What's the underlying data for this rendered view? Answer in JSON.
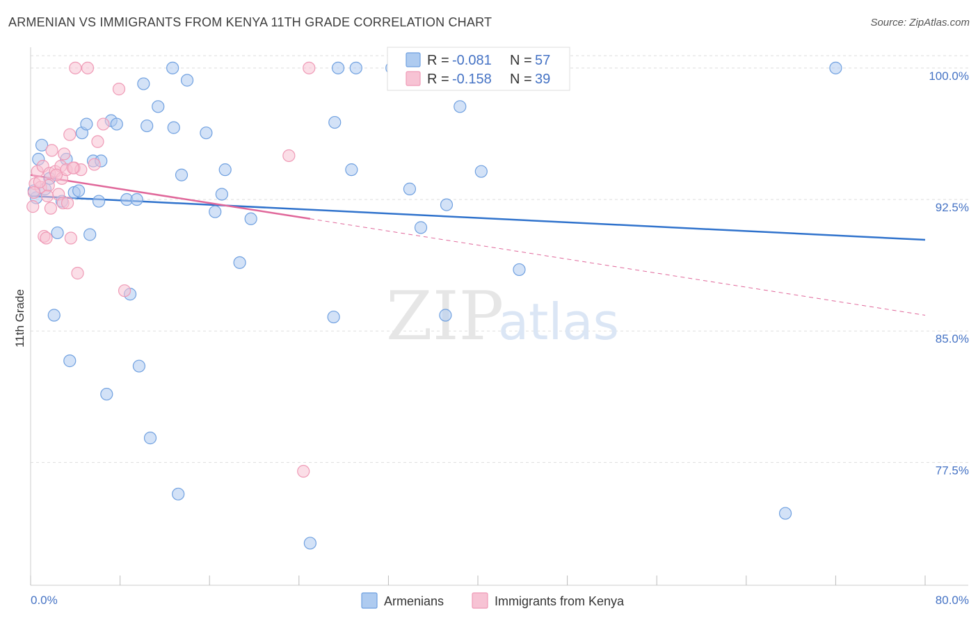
{
  "title": "ARMENIAN VS IMMIGRANTS FROM KENYA 11TH GRADE CORRELATION CHART",
  "source": "Source: ZipAtlas.com",
  "watermark": {
    "zip": "ZIP",
    "atlas": "atlas"
  },
  "colors": {
    "armenians": "#6fa0e0",
    "armenians_fill": "#aecbf0",
    "armenians_line": "#2f72cc",
    "kenya": "#ef9ab6",
    "kenya_fill": "#f7c3d4",
    "kenya_line": "#e0679a",
    "tick": "#4472c4",
    "grid": "#dddddd"
  },
  "stats_legend": [
    {
      "series": "armenians",
      "r_label": "R =",
      "r_value": "-0.081",
      "n_label": "N =",
      "n_value": "57"
    },
    {
      "series": "kenya",
      "r_label": "R =",
      "r_value": "-0.158",
      "n_label": "N =",
      "n_value": "39"
    }
  ],
  "chart_data": {
    "type": "scatter",
    "title": "ARMENIAN VS IMMIGRANTS FROM KENYA 11TH GRADE CORRELATION CHART",
    "xlabel": "",
    "ylabel": "11th Grade",
    "xlim": [
      0,
      80
    ],
    "ylim": [
      70.5,
      101.5
    ],
    "x_tick_labels": [
      "0.0%",
      "80.0%"
    ],
    "y_ticks": [
      77.5,
      85.0,
      92.5,
      100.0
    ],
    "y_tick_labels": [
      "77.5%",
      "85.0%",
      "92.5%",
      "100.0%"
    ],
    "grid": true,
    "legend_position": "bottom-center",
    "series": [
      {
        "name": "Armenians",
        "key": "armenians",
        "trend": {
          "x": [
            0,
            80
          ],
          "y": [
            92.7,
            90.2
          ],
          "dashed_from": null
        },
        "points": [
          [
            0.5,
            92.6
          ],
          [
            0.7,
            94.8
          ],
          [
            1.0,
            95.6
          ],
          [
            1.3,
            93.1
          ],
          [
            1.7,
            93.7
          ],
          [
            2.1,
            85.9
          ],
          [
            2.4,
            90.6
          ],
          [
            2.8,
            92.4
          ],
          [
            3.2,
            94.8
          ],
          [
            3.5,
            83.3
          ],
          [
            3.9,
            92.9
          ],
          [
            4.3,
            93.0
          ],
          [
            4.6,
            96.3
          ],
          [
            5.0,
            96.8
          ],
          [
            5.3,
            90.5
          ],
          [
            5.6,
            94.7
          ],
          [
            6.1,
            92.4
          ],
          [
            6.3,
            94.7
          ],
          [
            6.8,
            81.4
          ],
          [
            7.2,
            97.0
          ],
          [
            7.7,
            96.8
          ],
          [
            8.6,
            92.5
          ],
          [
            8.9,
            87.1
          ],
          [
            9.5,
            92.5
          ],
          [
            9.7,
            83.0
          ],
          [
            10.1,
            99.1
          ],
          [
            10.4,
            96.7
          ],
          [
            10.7,
            78.9
          ],
          [
            11.4,
            97.8
          ],
          [
            12.7,
            100.0
          ],
          [
            12.8,
            96.6
          ],
          [
            13.2,
            75.7
          ],
          [
            13.5,
            93.9
          ],
          [
            14.0,
            99.3
          ],
          [
            15.7,
            96.3
          ],
          [
            16.5,
            91.8
          ],
          [
            17.1,
            92.8
          ],
          [
            17.4,
            94.2
          ],
          [
            18.7,
            88.9
          ],
          [
            19.7,
            91.4
          ],
          [
            25.0,
            72.9
          ],
          [
            27.1,
            85.8
          ],
          [
            27.2,
            96.9
          ],
          [
            27.5,
            100.0
          ],
          [
            28.7,
            94.2
          ],
          [
            29.1,
            100.0
          ],
          [
            32.3,
            100.0
          ],
          [
            33.9,
            93.1
          ],
          [
            34.9,
            90.9
          ],
          [
            37.1,
            85.9
          ],
          [
            37.2,
            92.2
          ],
          [
            38.4,
            97.8
          ],
          [
            40.3,
            94.1
          ],
          [
            43.7,
            88.5
          ],
          [
            67.5,
            74.6
          ],
          [
            72.0,
            100.0
          ],
          [
            0.3,
            93.0
          ]
        ]
      },
      {
        "name": "Immigrants from Kenya",
        "key": "kenya",
        "trend": {
          "x": [
            0,
            80
          ],
          "y": [
            93.9,
            85.9
          ],
          "dashed_from": 25
        },
        "points": [
          [
            0.2,
            92.1
          ],
          [
            0.4,
            93.4
          ],
          [
            0.6,
            94.1
          ],
          [
            0.9,
            93.2
          ],
          [
            1.1,
            94.4
          ],
          [
            1.2,
            90.4
          ],
          [
            1.4,
            90.3
          ],
          [
            1.6,
            93.3
          ],
          [
            1.7,
            94.0
          ],
          [
            1.8,
            92.0
          ],
          [
            1.9,
            95.3
          ],
          [
            2.2,
            94.1
          ],
          [
            2.5,
            92.8
          ],
          [
            2.7,
            94.4
          ],
          [
            2.8,
            93.7
          ],
          [
            2.9,
            92.3
          ],
          [
            3.0,
            95.1
          ],
          [
            3.2,
            94.2
          ],
          [
            3.3,
            92.3
          ],
          [
            3.5,
            96.2
          ],
          [
            3.6,
            90.3
          ],
          [
            3.9,
            94.3
          ],
          [
            4.0,
            100.0
          ],
          [
            4.2,
            88.3
          ],
          [
            4.5,
            94.2
          ],
          [
            5.1,
            100.0
          ],
          [
            5.7,
            94.5
          ],
          [
            6.0,
            95.8
          ],
          [
            6.5,
            96.8
          ],
          [
            7.9,
            98.8
          ],
          [
            8.4,
            87.3
          ],
          [
            23.1,
            95.0
          ],
          [
            24.4,
            77.0
          ],
          [
            24.9,
            100.0
          ],
          [
            0.8,
            93.5
          ],
          [
            1.5,
            92.7
          ],
          [
            2.3,
            93.9
          ],
          [
            0.3,
            92.9
          ],
          [
            3.8,
            94.3
          ]
        ]
      }
    ]
  },
  "bottom_legend": [
    {
      "series": "armenians",
      "label": "Armenians"
    },
    {
      "series": "kenya",
      "label": "Immigrants from Kenya"
    }
  ]
}
